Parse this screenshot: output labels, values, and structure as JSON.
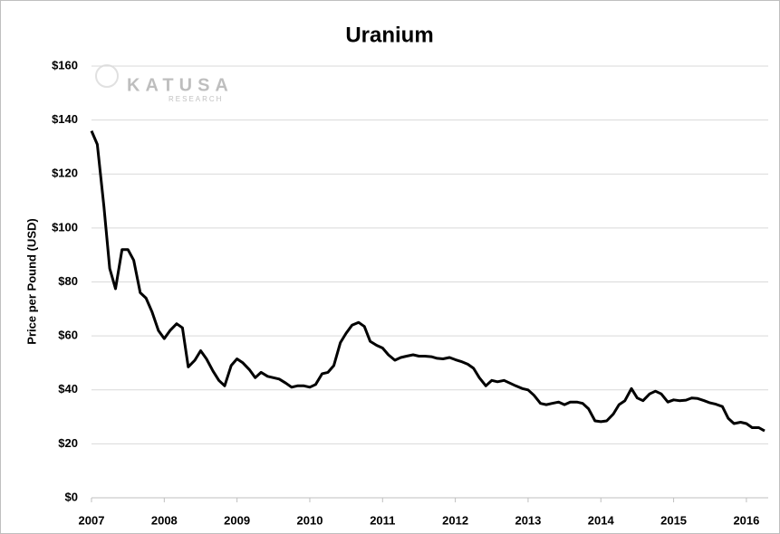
{
  "chart_data": {
    "type": "line",
    "title": "Uranium",
    "y_label": "Price per Pound (USD)",
    "watermark": {
      "brand": "KATUSA",
      "sub": "RESEARCH"
    },
    "color": "#000000",
    "grid": true,
    "xlim": [
      2007,
      2016.3
    ],
    "xticks": [
      2007,
      2008,
      2009,
      2010,
      2011,
      2012,
      2013,
      2014,
      2015,
      2016
    ],
    "ylim": [
      0,
      160
    ],
    "yticks": [
      {
        "value": 0,
        "label": "$0"
      },
      {
        "value": 20,
        "label": "$20"
      },
      {
        "value": 40,
        "label": "$40"
      },
      {
        "value": 60,
        "label": "$60"
      },
      {
        "value": 80,
        "label": "$80"
      },
      {
        "value": 100,
        "label": "$100"
      },
      {
        "value": 120,
        "label": "$120"
      },
      {
        "value": 140,
        "label": "$140"
      },
      {
        "value": 160,
        "label": "$160"
      }
    ],
    "x": [
      2007.0,
      2007.08,
      2007.17,
      2007.25,
      2007.33,
      2007.42,
      2007.5,
      2007.58,
      2007.67,
      2007.75,
      2007.83,
      2007.92,
      2008.0,
      2008.08,
      2008.17,
      2008.25,
      2008.33,
      2008.42,
      2008.5,
      2008.58,
      2008.67,
      2008.75,
      2008.83,
      2008.92,
      2009.0,
      2009.08,
      2009.17,
      2009.25,
      2009.33,
      2009.42,
      2009.5,
      2009.58,
      2009.67,
      2009.75,
      2009.83,
      2009.92,
      2010.0,
      2010.08,
      2010.17,
      2010.25,
      2010.33,
      2010.42,
      2010.5,
      2010.58,
      2010.67,
      2010.75,
      2010.83,
      2010.92,
      2011.0,
      2011.08,
      2011.17,
      2011.25,
      2011.33,
      2011.42,
      2011.5,
      2011.58,
      2011.67,
      2011.75,
      2011.83,
      2011.92,
      2012.0,
      2012.08,
      2012.17,
      2012.25,
      2012.33,
      2012.42,
      2012.5,
      2012.58,
      2012.67,
      2012.75,
      2012.83,
      2012.92,
      2013.0,
      2013.08,
      2013.17,
      2013.25,
      2013.33,
      2013.42,
      2013.5,
      2013.58,
      2013.67,
      2013.75,
      2013.83,
      2013.92,
      2014.0,
      2014.08,
      2014.17,
      2014.25,
      2014.33,
      2014.42,
      2014.5,
      2014.58,
      2014.67,
      2014.75,
      2014.83,
      2014.92,
      2015.0,
      2015.08,
      2015.17,
      2015.25,
      2015.33,
      2015.42,
      2015.5,
      2015.58,
      2015.67,
      2015.75,
      2015.83,
      2015.92,
      2016.0,
      2016.08,
      2016.17,
      2016.25
    ],
    "values": [
      136,
      131,
      108,
      85,
      77.5,
      92,
      92,
      88,
      76,
      74,
      69,
      62,
      59,
      62,
      64.5,
      63,
      48.5,
      51,
      54.5,
      51.5,
      47,
      43.5,
      41.5,
      49,
      51.5,
      50,
      47.5,
      44.5,
      46.5,
      45,
      44.5,
      44,
      42.5,
      41,
      41.5,
      41.5,
      41,
      42,
      46,
      46.5,
      49,
      57.5,
      61,
      64,
      65,
      63.5,
      58,
      56.5,
      55.5,
      53,
      51,
      52,
      52.5,
      53,
      52.5,
      52.5,
      52.3,
      51.7,
      51.5,
      52,
      51.2,
      50.5,
      49.5,
      48,
      44.5,
      41.5,
      43.5,
      43,
      43.5,
      42.5,
      41.5,
      40.5,
      40,
      38,
      35,
      34.5,
      35,
      35.5,
      34.5,
      35.5,
      35.5,
      35,
      33,
      28.5,
      28.2,
      28.5,
      31,
      34.5,
      36,
      40.5,
      37,
      36,
      38.5,
      39.5,
      38.5,
      35.5,
      36.3,
      36,
      36.2,
      37,
      36.8,
      36,
      35.2,
      34.7,
      33.8,
      29.5,
      27.5,
      28,
      27.5,
      26,
      26,
      24.8
    ]
  }
}
